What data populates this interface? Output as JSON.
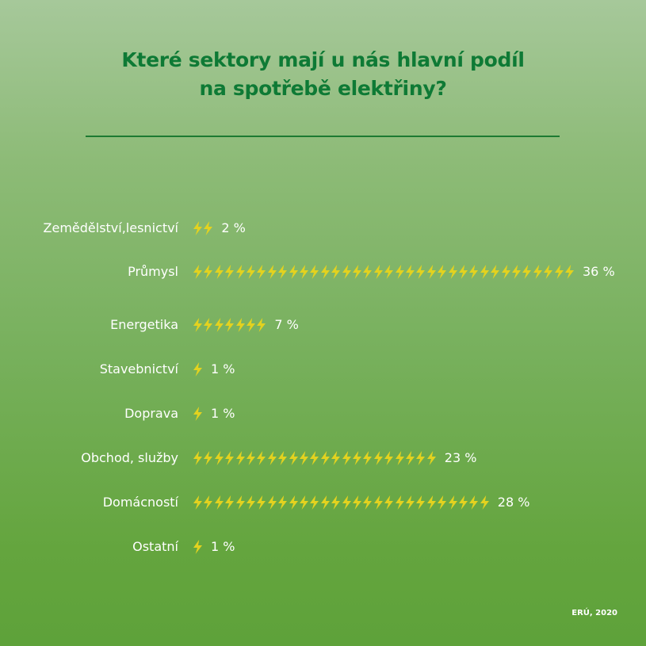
{
  "chart_data": {
    "type": "bar",
    "title_lines": [
      "Které sektory mají u nás hlavní podíl",
      "na spotřebě elektřiny?"
    ],
    "categories": [
      "Zemědělství,lesnictví",
      "Průmysl",
      "Energetika",
      "Stavebnictví",
      "Doprava",
      "Obchod, služby",
      "Domácností",
      "Ostatní"
    ],
    "values": [
      2,
      36,
      7,
      1,
      1,
      23,
      28,
      1
    ],
    "value_labels": [
      "2 %",
      "36 %",
      "7 %",
      "1 %",
      "1 %",
      "23 %",
      "28 %",
      "1 %"
    ],
    "unit": "%",
    "marker": "lightning-bolt-icon",
    "colors": {
      "bolt": "#e3d21f",
      "title": "#0e7a35",
      "rule": "#1d7a32",
      "text": "#ffffff"
    }
  },
  "source": "ERÚ, 2020"
}
